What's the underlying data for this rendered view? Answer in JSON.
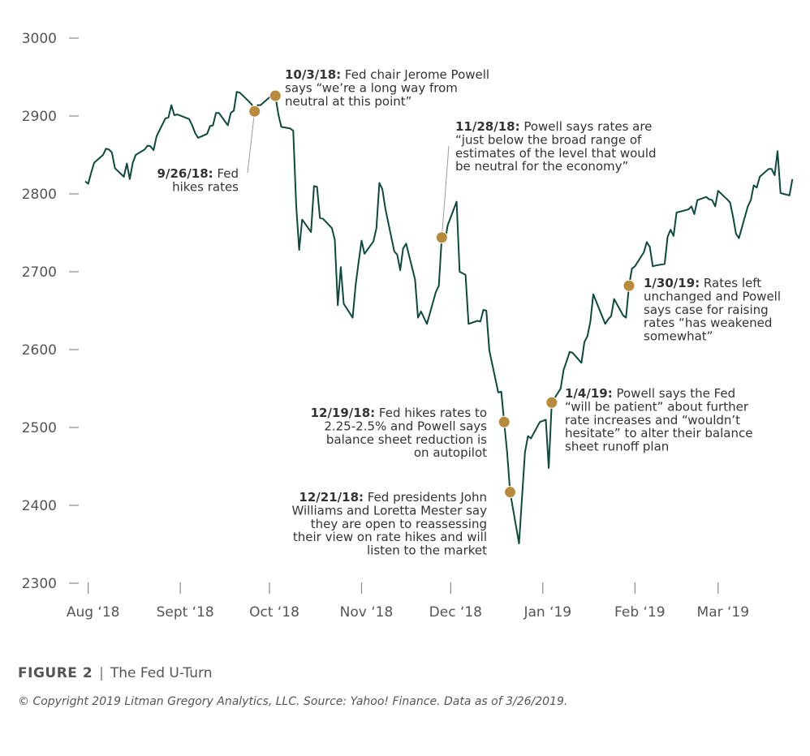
{
  "chart_data": {
    "type": "line",
    "title": "The Fed U-Turn",
    "xlabel": "",
    "ylabel": "",
    "ylim": [
      2300,
      3000
    ],
    "yticks": [
      2300,
      2400,
      2500,
      2600,
      2700,
      2800,
      2900,
      3000
    ],
    "xlim": [
      "2018-07-31",
      "2019-03-27"
    ],
    "xticks": [
      {
        "label": "Aug ‘18",
        "date": "2018-08-01"
      },
      {
        "label": "Sept ‘18",
        "date": "2018-09-01"
      },
      {
        "label": "Oct ‘18",
        "date": "2018-10-01"
      },
      {
        "label": "Nov ‘18",
        "date": "2018-11-01"
      },
      {
        "label": "Dec ‘18",
        "date": "2018-12-01"
      },
      {
        "label": "Jan ‘19",
        "date": "2019-01-01"
      },
      {
        "label": "Feb ‘19",
        "date": "2019-02-01"
      },
      {
        "label": "Mar ‘19",
        "date": "2019-03-01"
      }
    ],
    "series": [
      {
        "color": "#0d4a3c",
        "points": [
          [
            "2018-07-31",
            2816
          ],
          [
            "2018-08-01",
            2813
          ],
          [
            "2018-08-02",
            2827
          ],
          [
            "2018-08-03",
            2840
          ],
          [
            "2018-08-06",
            2850
          ],
          [
            "2018-08-07",
            2858
          ],
          [
            "2018-08-08",
            2857
          ],
          [
            "2018-08-09",
            2853
          ],
          [
            "2018-08-10",
            2833
          ],
          [
            "2018-08-13",
            2822
          ],
          [
            "2018-08-14",
            2839
          ],
          [
            "2018-08-15",
            2819
          ],
          [
            "2018-08-16",
            2840
          ],
          [
            "2018-08-17",
            2850
          ],
          [
            "2018-08-20",
            2857
          ],
          [
            "2018-08-21",
            2862
          ],
          [
            "2018-08-22",
            2861
          ],
          [
            "2018-08-23",
            2856
          ],
          [
            "2018-08-24",
            2874
          ],
          [
            "2018-08-27",
            2897
          ],
          [
            "2018-08-28",
            2898
          ],
          [
            "2018-08-29",
            2914
          ],
          [
            "2018-08-30",
            2901
          ],
          [
            "2018-08-31",
            2902
          ],
          [
            "2018-09-04",
            2896
          ],
          [
            "2018-09-05",
            2888
          ],
          [
            "2018-09-06",
            2878
          ],
          [
            "2018-09-07",
            2872
          ],
          [
            "2018-09-10",
            2877
          ],
          [
            "2018-09-11",
            2887
          ],
          [
            "2018-09-12",
            2888
          ],
          [
            "2018-09-13",
            2904
          ],
          [
            "2018-09-14",
            2904
          ],
          [
            "2018-09-17",
            2888
          ],
          [
            "2018-09-18",
            2904
          ],
          [
            "2018-09-19",
            2907
          ],
          [
            "2018-09-20",
            2931
          ],
          [
            "2018-09-21",
            2930
          ],
          [
            "2018-09-24",
            2919
          ],
          [
            "2018-09-25",
            2915
          ],
          [
            "2018-09-26",
            2906
          ],
          [
            "2018-09-27",
            2914
          ],
          [
            "2018-09-28",
            2914
          ],
          [
            "2018-10-01",
            2924
          ],
          [
            "2018-10-02",
            2923
          ],
          [
            "2018-10-03",
            2926
          ],
          [
            "2018-10-04",
            2902
          ],
          [
            "2018-10-05",
            2886
          ],
          [
            "2018-10-08",
            2884
          ],
          [
            "2018-10-09",
            2881
          ],
          [
            "2018-10-10",
            2786
          ],
          [
            "2018-10-11",
            2728
          ],
          [
            "2018-10-12",
            2767
          ],
          [
            "2018-10-15",
            2751
          ],
          [
            "2018-10-16",
            2810
          ],
          [
            "2018-10-17",
            2809
          ],
          [
            "2018-10-18",
            2769
          ],
          [
            "2018-10-19",
            2768
          ],
          [
            "2018-10-22",
            2756
          ],
          [
            "2018-10-23",
            2741
          ],
          [
            "2018-10-24",
            2657
          ],
          [
            "2018-10-25",
            2706
          ],
          [
            "2018-10-26",
            2659
          ],
          [
            "2018-10-29",
            2641
          ],
          [
            "2018-10-30",
            2683
          ],
          [
            "2018-10-31",
            2712
          ],
          [
            "2018-11-01",
            2740
          ],
          [
            "2018-11-02",
            2723
          ],
          [
            "2018-11-05",
            2739
          ],
          [
            "2018-11-06",
            2756
          ],
          [
            "2018-11-07",
            2814
          ],
          [
            "2018-11-08",
            2806
          ],
          [
            "2018-11-09",
            2781
          ],
          [
            "2018-11-12",
            2726
          ],
          [
            "2018-11-13",
            2722
          ],
          [
            "2018-11-14",
            2702
          ],
          [
            "2018-11-15",
            2730
          ],
          [
            "2018-11-16",
            2736
          ],
          [
            "2018-11-19",
            2690
          ],
          [
            "2018-11-20",
            2641
          ],
          [
            "2018-11-21",
            2649
          ],
          [
            "2018-11-23",
            2633
          ],
          [
            "2018-11-26",
            2674
          ],
          [
            "2018-11-27",
            2682
          ],
          [
            "2018-11-28",
            2744
          ],
          [
            "2018-11-29",
            2738
          ],
          [
            "2018-11-30",
            2760
          ],
          [
            "2018-12-03",
            2790
          ],
          [
            "2018-12-04",
            2700
          ],
          [
            "2018-12-06",
            2696
          ],
          [
            "2018-12-07",
            2633
          ],
          [
            "2018-12-10",
            2637
          ],
          [
            "2018-12-11",
            2636
          ],
          [
            "2018-12-12",
            2651
          ],
          [
            "2018-12-13",
            2650
          ],
          [
            "2018-12-14",
            2599
          ],
          [
            "2018-12-17",
            2545
          ],
          [
            "2018-12-18",
            2546
          ],
          [
            "2018-12-19",
            2507
          ],
          [
            "2018-12-20",
            2467
          ],
          [
            "2018-12-21",
            2417
          ],
          [
            "2018-12-24",
            2351
          ],
          [
            "2018-12-26",
            2468
          ],
          [
            "2018-12-27",
            2489
          ],
          [
            "2018-12-28",
            2486
          ],
          [
            "2018-12-31",
            2507
          ],
          [
            "2019-01-02",
            2510
          ],
          [
            "2019-01-03",
            2448
          ],
          [
            "2019-01-04",
            2532
          ],
          [
            "2019-01-07",
            2550
          ],
          [
            "2019-01-08",
            2574
          ],
          [
            "2019-01-09",
            2585
          ],
          [
            "2019-01-10",
            2597
          ],
          [
            "2019-01-11",
            2596
          ],
          [
            "2019-01-14",
            2583
          ],
          [
            "2019-01-15",
            2610
          ],
          [
            "2019-01-16",
            2617
          ],
          [
            "2019-01-17",
            2636
          ],
          [
            "2019-01-18",
            2671
          ],
          [
            "2019-01-22",
            2633
          ],
          [
            "2019-01-23",
            2639
          ],
          [
            "2019-01-24",
            2643
          ],
          [
            "2019-01-25",
            2665
          ],
          [
            "2019-01-28",
            2644
          ],
          [
            "2019-01-29",
            2641
          ],
          [
            "2019-01-30",
            2682
          ],
          [
            "2019-01-31",
            2704
          ],
          [
            "2019-02-01",
            2707
          ],
          [
            "2019-02-04",
            2725
          ],
          [
            "2019-02-05",
            2738
          ],
          [
            "2019-02-06",
            2732
          ],
          [
            "2019-02-07",
            2707
          ],
          [
            "2019-02-08",
            2708
          ],
          [
            "2019-02-11",
            2710
          ],
          [
            "2019-02-12",
            2745
          ],
          [
            "2019-02-13",
            2754
          ],
          [
            "2019-02-14",
            2746
          ],
          [
            "2019-02-15",
            2776
          ],
          [
            "2019-02-19",
            2780
          ],
          [
            "2019-02-20",
            2784
          ],
          [
            "2019-02-21",
            2774
          ],
          [
            "2019-02-22",
            2792
          ],
          [
            "2019-02-25",
            2796
          ],
          [
            "2019-02-26",
            2793
          ],
          [
            "2019-02-27",
            2792
          ],
          [
            "2019-02-28",
            2784
          ],
          [
            "2019-03-01",
            2804
          ],
          [
            "2019-03-04",
            2793
          ],
          [
            "2019-03-05",
            2789
          ],
          [
            "2019-03-06",
            2771
          ],
          [
            "2019-03-07",
            2749
          ],
          [
            "2019-03-08",
            2743
          ],
          [
            "2019-03-11",
            2784
          ],
          [
            "2019-03-12",
            2792
          ],
          [
            "2019-03-13",
            2811
          ],
          [
            "2019-03-14",
            2808
          ],
          [
            "2019-03-15",
            2822
          ],
          [
            "2019-03-18",
            2832
          ],
          [
            "2019-03-19",
            2832
          ],
          [
            "2019-03-20",
            2824
          ],
          [
            "2019-03-21",
            2855
          ],
          [
            "2019-03-22",
            2801
          ],
          [
            "2019-03-25",
            2798
          ],
          [
            "2019-03-26",
            2819
          ]
        ]
      }
    ],
    "annotations": [
      {
        "date": "2018-09-26",
        "value": 2906,
        "label_bold": "9/26/18:",
        "lines": [
          " Fed",
          "hikes rates"
        ],
        "align": "right"
      },
      {
        "date": "2018-10-03",
        "value": 2926,
        "label_bold": "10/3/18:",
        "lines": [
          " Fed chair Jerome Powell",
          "says “we’re a long way from",
          "neutral at this point”"
        ],
        "align": "left"
      },
      {
        "date": "2018-11-28",
        "value": 2744,
        "label_bold": "11/28/18:",
        "lines": [
          " Powell says rates are",
          "“just below the broad range of",
          "estimates of the level that would",
          "be neutral for the economy”"
        ],
        "align": "left"
      },
      {
        "date": "2018-12-19",
        "value": 2507,
        "label_bold": "12/19/18:",
        "lines": [
          " Fed hikes rates to",
          "2.25-2.5% and Powell says",
          "balance sheet reduction is",
          "on autopilot"
        ],
        "align": "right"
      },
      {
        "date": "2018-12-21",
        "value": 2417,
        "label_bold": "12/21/18:",
        "lines": [
          " Fed presidents John",
          "Williams and Loretta Mester say",
          "they are open to reassessing",
          "their view on rate hikes and will",
          "listen to the market"
        ],
        "align": "right"
      },
      {
        "date": "2019-01-04",
        "value": 2532,
        "label_bold": "1/4/19:",
        "lines": [
          " Powell says the Fed",
          "“will be patient” about further",
          "rate increases and “wouldn’t",
          "hesitate” to alter their balance",
          "sheet runoff plan"
        ],
        "align": "left"
      },
      {
        "date": "2019-01-30",
        "value": 2682,
        "label_bold": "1/30/19:",
        "lines": [
          " Rates left",
          "unchanged and Powell",
          "says case for raising",
          "rates “has weakened",
          "somewhat”"
        ],
        "align": "left"
      }
    ],
    "grid": false,
    "legend": "none",
    "dot_color": "#b88a3b"
  },
  "caption": {
    "figure_label": "FIGURE 2",
    "separator": "|",
    "title": "The Fed U-Turn"
  },
  "source_note": "© Copyright 2019 Litman Gregory Analytics, LLC. Source: Yahoo! Finance. Data as of 3/26/2019."
}
